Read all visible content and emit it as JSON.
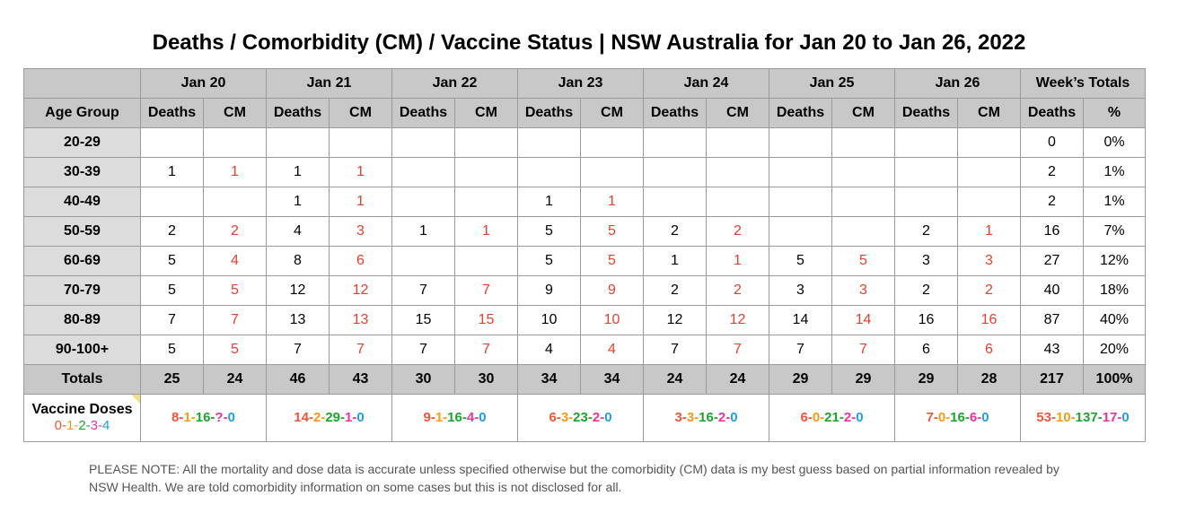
{
  "title": "Deaths / Comorbidity (CM) / Vaccine Status | NSW Australia for Jan 20 to Jan 26, 2022",
  "header": {
    "dates": [
      "Jan 20",
      "Jan 21",
      "Jan 22",
      "Jan 23",
      "Jan 24",
      "Jan 25",
      "Jan 26"
    ],
    "week_totals": "Week’s Totals",
    "age_group": "Age Group",
    "deaths": "Deaths",
    "cm": "CM",
    "pct": "%"
  },
  "rows": [
    {
      "age": "20-29",
      "cells": [
        "",
        "",
        "",
        "",
        "",
        "",
        "",
        "",
        "",
        "",
        "",
        "",
        "",
        ""
      ],
      "total": "0",
      "pct": "0%"
    },
    {
      "age": "30-39",
      "cells": [
        "1",
        "1",
        "1",
        "1",
        "",
        "",
        "",
        "",
        "",
        "",
        "",
        "",
        "",
        ""
      ],
      "total": "2",
      "pct": "1%"
    },
    {
      "age": "40-49",
      "cells": [
        "",
        "",
        "1",
        "1",
        "",
        "",
        "1",
        "1",
        "",
        "",
        "",
        "",
        "",
        ""
      ],
      "total": "2",
      "pct": "1%"
    },
    {
      "age": "50-59",
      "cells": [
        "2",
        "2",
        "4",
        "3",
        "1",
        "1",
        "5",
        "5",
        "2",
        "2",
        "",
        "",
        "2",
        "1"
      ],
      "total": "16",
      "pct": "7%"
    },
    {
      "age": "60-69",
      "cells": [
        "5",
        "4",
        "8",
        "6",
        "",
        "",
        "5",
        "5",
        "1",
        "1",
        "5",
        "5",
        "3",
        "3"
      ],
      "total": "27",
      "pct": "12%"
    },
    {
      "age": "70-79",
      "cells": [
        "5",
        "5",
        "12",
        "12",
        "7",
        "7",
        "9",
        "9",
        "2",
        "2",
        "3",
        "3",
        "2",
        "2"
      ],
      "total": "40",
      "pct": "18%"
    },
    {
      "age": "80-89",
      "cells": [
        "7",
        "7",
        "13",
        "13",
        "15",
        "15",
        "10",
        "10",
        "12",
        "12",
        "14",
        "14",
        "16",
        "16"
      ],
      "total": "87",
      "pct": "40%"
    },
    {
      "age": "90-100+",
      "cells": [
        "5",
        "5",
        "7",
        "7",
        "7",
        "7",
        "4",
        "4",
        "7",
        "7",
        "7",
        "7",
        "6",
        "6"
      ],
      "total": "43",
      "pct": "20%"
    }
  ],
  "totals": {
    "label": "Totals",
    "cells": [
      "25",
      "24",
      "46",
      "43",
      "30",
      "30",
      "34",
      "34",
      "24",
      "24",
      "29",
      "29",
      "29",
      "28"
    ],
    "total": "217",
    "pct": "100%"
  },
  "vaccine": {
    "label": "Vaccine Doses",
    "legend": [
      "0",
      "1",
      "2",
      "3",
      "4"
    ],
    "days": [
      [
        "8",
        "1",
        "16",
        "?",
        "0"
      ],
      [
        "14",
        "2",
        "29",
        "1",
        "0"
      ],
      [
        "9",
        "1",
        "16",
        "4",
        "0"
      ],
      [
        "6",
        "3",
        "23",
        "2",
        "0"
      ],
      [
        "3",
        "3",
        "16",
        "2",
        "0"
      ],
      [
        "6",
        "0",
        "21",
        "2",
        "0"
      ],
      [
        "7",
        "0",
        "16",
        "6",
        "0"
      ]
    ],
    "week": [
      "53",
      "10",
      "137",
      "17",
      "0"
    ],
    "colors": [
      "#f0553a",
      "#f39c1a",
      "#1ea330",
      "#e8359a",
      "#1d9ee8"
    ]
  },
  "note": "PLEASE NOTE: All the mortality and dose data is accurate unless specified otherwise but the comorbidity (CM) data is my best guess based on partial information revealed by NSW Health. We are told comorbidity information on some cases but this is not disclosed for all."
}
